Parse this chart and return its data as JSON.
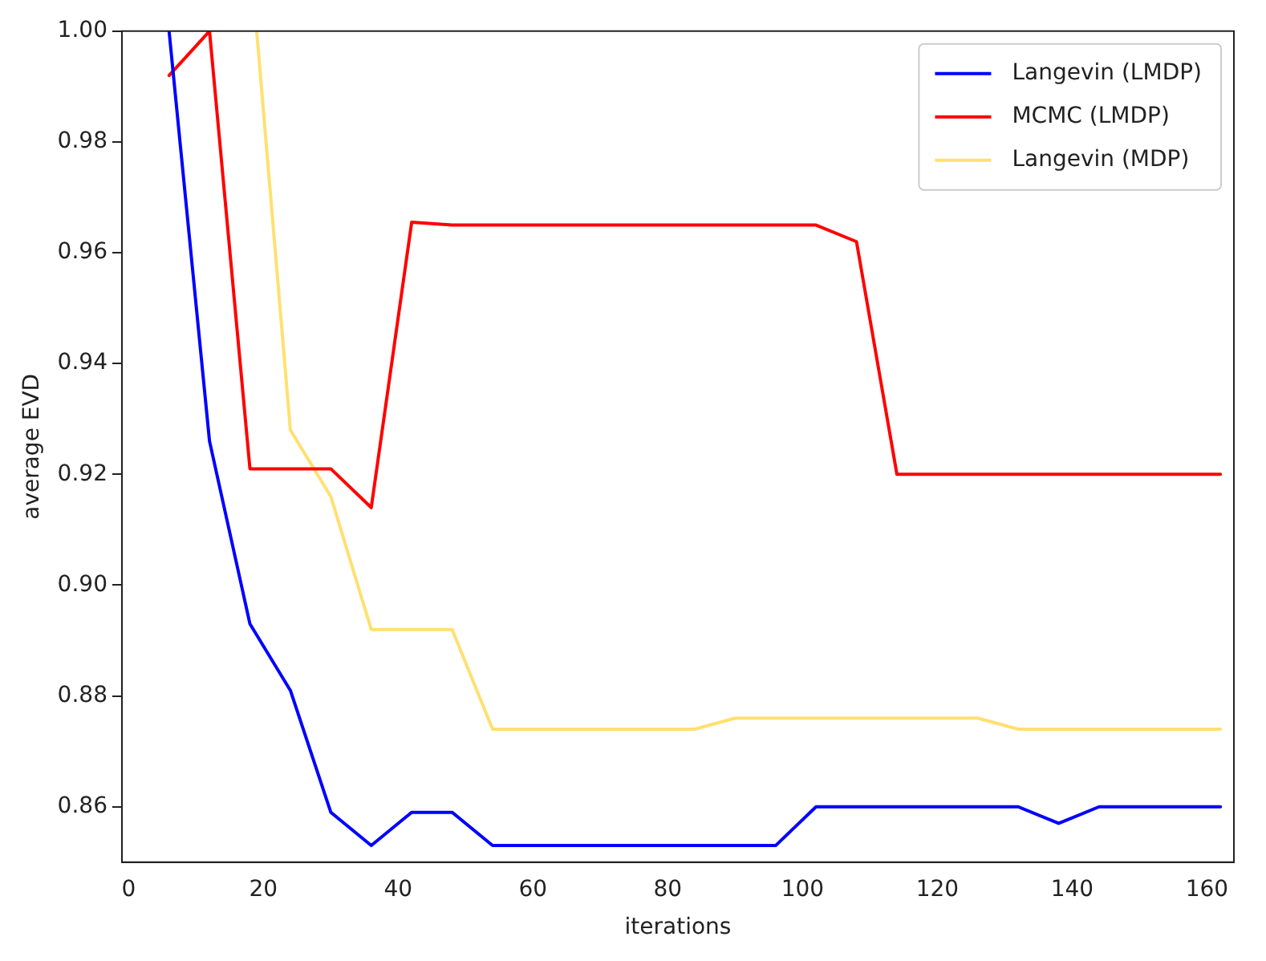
{
  "chart_data": {
    "type": "line",
    "xlabel": "iterations",
    "ylabel": "average EVD",
    "xlim": [
      -1,
      164
    ],
    "xticks": [
      0,
      20,
      40,
      60,
      80,
      100,
      120,
      140,
      160
    ],
    "ylim": [
      0.85,
      1.0
    ],
    "yticks": [
      {
        "value": 0.86,
        "label": "0.86"
      },
      {
        "value": 0.88,
        "label": "0.88"
      },
      {
        "value": 0.9,
        "label": "0.90"
      },
      {
        "value": 0.92,
        "label": "0.92"
      },
      {
        "value": 0.94,
        "label": "0.94"
      },
      {
        "value": 0.96,
        "label": "0.96"
      },
      {
        "value": 0.98,
        "label": "0.98"
      },
      {
        "value": 1.0,
        "label": "1.00"
      }
    ],
    "grid": false,
    "legend": "top right",
    "marker": "none",
    "line_style": "solid",
    "x": [
      6,
      12,
      18,
      24,
      30,
      36,
      42,
      48,
      54,
      60,
      66,
      72,
      78,
      84,
      90,
      96,
      102,
      108,
      114,
      120,
      126,
      132,
      138,
      144,
      150,
      156,
      162
    ],
    "series": [
      {
        "name": "Langevin (LMDP)",
        "color": "#0000ff",
        "values": [
          1.0,
          0.926,
          0.893,
          0.881,
          0.859,
          0.853,
          0.859,
          0.859,
          0.853,
          0.853,
          0.853,
          0.853,
          0.853,
          0.853,
          0.853,
          0.853,
          0.86,
          0.86,
          0.86,
          0.86,
          0.86,
          0.86,
          0.857,
          0.86,
          0.86,
          0.86,
          0.86
        ]
      },
      {
        "name": "MCMC (LMDP)",
        "color": "#ff0000",
        "values": [
          0.992,
          1.0,
          0.921,
          0.921,
          0.921,
          0.914,
          0.9655,
          0.965,
          0.965,
          0.965,
          0.965,
          0.965,
          0.965,
          0.965,
          0.965,
          0.965,
          0.965,
          0.962,
          0.92,
          0.92,
          0.92,
          0.92,
          0.92,
          0.92,
          0.92,
          0.92,
          0.92
        ]
      },
      {
        "name": "Langevin (MDP)",
        "color": "#ffe070",
        "x": [
          19,
          24,
          30,
          36,
          42,
          48,
          54,
          60,
          66,
          72,
          78,
          84,
          90,
          96,
          102,
          108,
          114,
          120,
          126,
          132,
          138,
          144,
          150,
          156,
          162
        ],
        "values": [
          1.0,
          0.928,
          0.916,
          0.892,
          0.892,
          0.892,
          0.874,
          0.874,
          0.874,
          0.874,
          0.874,
          0.874,
          0.876,
          0.876,
          0.876,
          0.876,
          0.876,
          0.876,
          0.876,
          0.874,
          0.874,
          0.874,
          0.874,
          0.874,
          0.874
        ]
      }
    ]
  }
}
